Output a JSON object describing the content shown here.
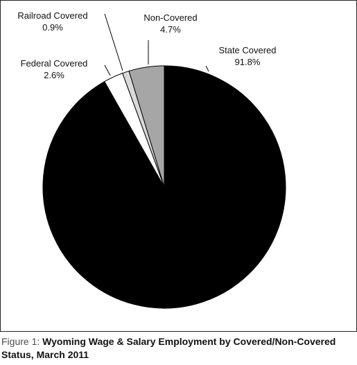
{
  "chart_data": {
    "type": "pie",
    "categories": [
      "State Covered",
      "Federal Covered",
      "Railroad Covered",
      "Non-Covered"
    ],
    "values": [
      91.8,
      2.6,
      0.9,
      4.7
    ],
    "value_labels": [
      "91.8%",
      "2.6%",
      "0.9%",
      "4.7%"
    ],
    "colors": [
      "#000000",
      "#ffffff",
      "#d9d9d9",
      "#a6a6a6"
    ],
    "start": "12 o'clock",
    "direction": "clockwise"
  },
  "caption": {
    "prefix": "Figure 1:",
    "title": "Wyoming Wage & Salary Employment by Covered/Non-Covered Status, March 2011"
  }
}
